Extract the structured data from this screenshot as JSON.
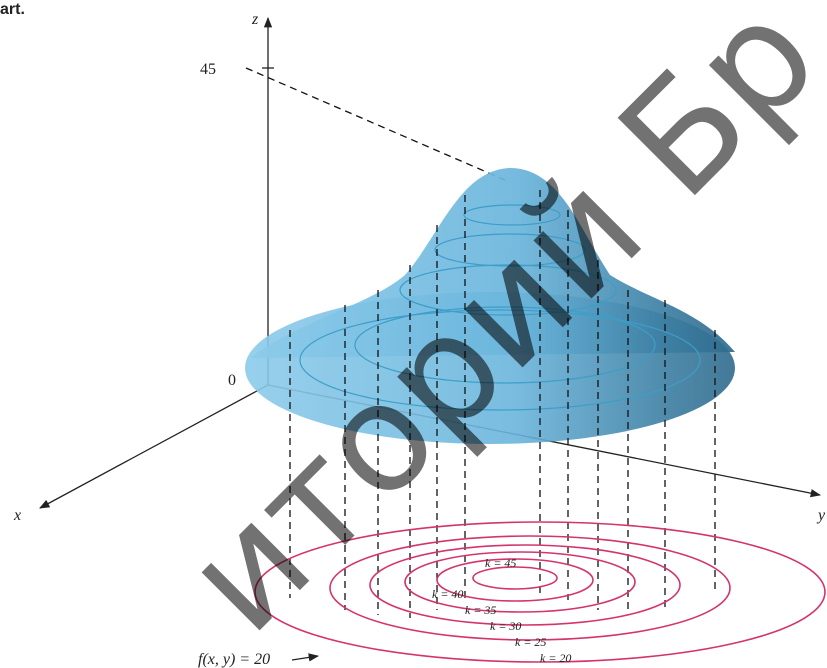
{
  "header": {
    "caption": "art."
  },
  "axes": {
    "z": "z",
    "x": "x",
    "y": "y",
    "tick_45": "45",
    "tick_0": "0"
  },
  "contours": [
    {
      "label": "k = 45"
    },
    {
      "label": "k = 40"
    },
    {
      "label": "k = 35"
    },
    {
      "label": "k = 30"
    },
    {
      "label": "k = 25"
    },
    {
      "label": "k = 20"
    }
  ],
  "function_label": "f(x, y) = 20",
  "watermark": "иторий Бр"
}
